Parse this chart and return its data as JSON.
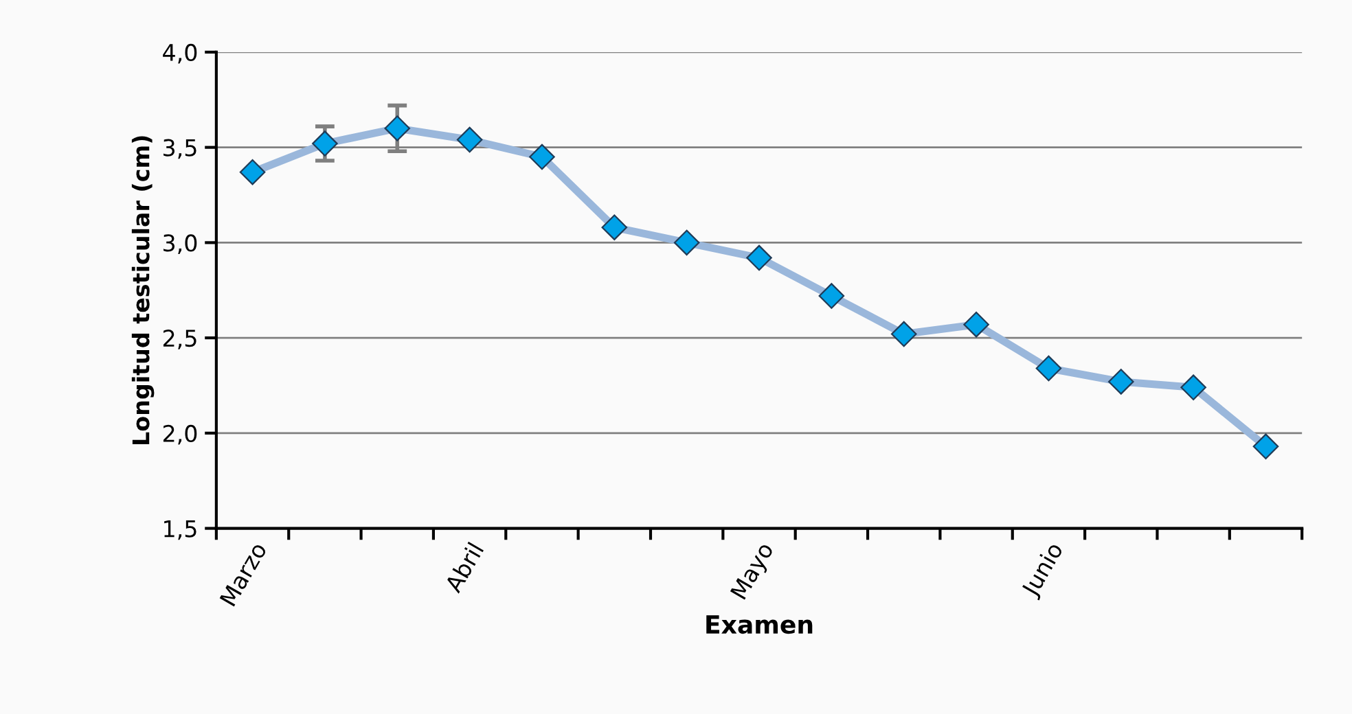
{
  "chart_data": {
    "type": "line",
    "xlabel": "Examen",
    "ylabel": "Longitud testicular (cm)",
    "categories": [
      "Marzo",
      null,
      null,
      "Abril",
      null,
      null,
      null,
      "Mayo",
      null,
      null,
      null,
      "Junio",
      null,
      null,
      null
    ],
    "series": [
      {
        "color": "#00a2e8",
        "values": [
          3.37,
          3.52,
          3.6,
          3.54,
          3.45,
          3.08,
          3.0,
          2.92,
          2.72,
          2.52,
          2.57,
          2.34,
          2.27,
          2.24,
          1.93
        ],
        "errors": [
          null,
          0.09,
          0.12,
          null,
          null,
          null,
          null,
          null,
          null,
          null,
          null,
          null,
          null,
          null,
          null
        ]
      }
    ],
    "ylim": [
      1.5,
      4.0
    ],
    "yticks": [
      {
        "value": 1.5,
        "label": "1,5"
      },
      {
        "value": 2.0,
        "label": "2,0"
      },
      {
        "value": 2.5,
        "label": "2,5"
      },
      {
        "value": 3.0,
        "label": "3,0"
      },
      {
        "value": 3.5,
        "label": "3,5"
      },
      {
        "value": 4.0,
        "label": "4,0"
      }
    ],
    "grid": "y",
    "marker": "diamond",
    "line_style": "solid",
    "legend": false
  }
}
